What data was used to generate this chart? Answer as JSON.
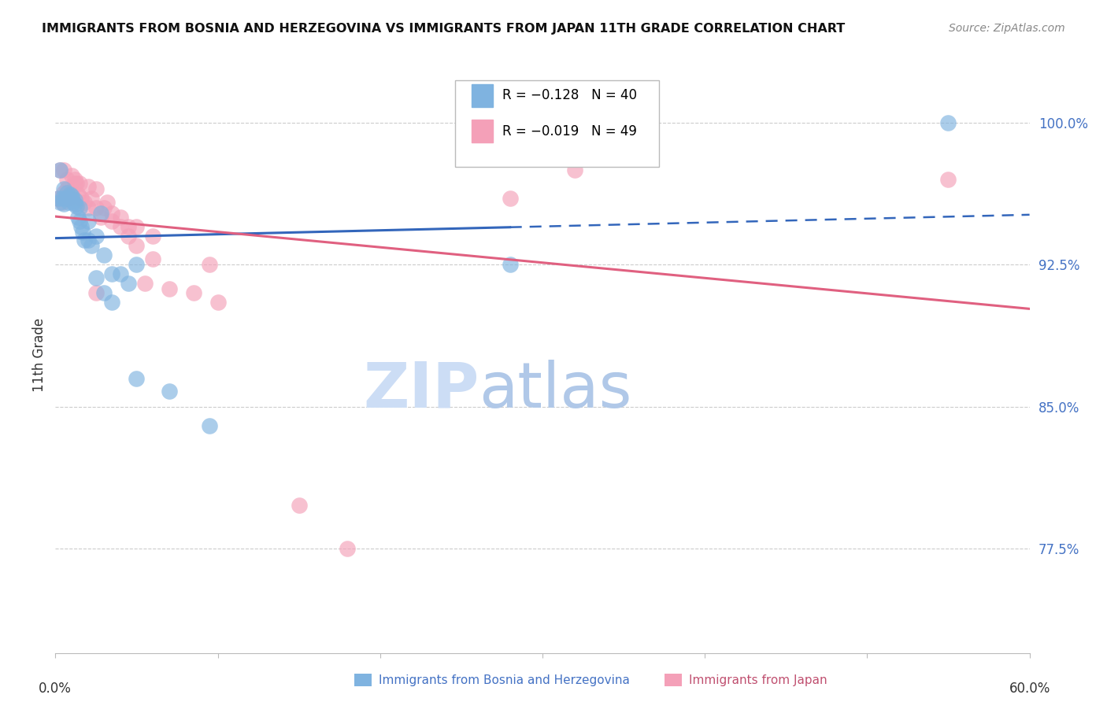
{
  "title": "IMMIGRANTS FROM BOSNIA AND HERZEGOVINA VS IMMIGRANTS FROM JAPAN 11TH GRADE CORRELATION CHART",
  "source": "Source: ZipAtlas.com",
  "ylabel": "11th Grade",
  "ytick_labels": [
    "77.5%",
    "85.0%",
    "92.5%",
    "100.0%"
  ],
  "ytick_values": [
    77.5,
    85.0,
    92.5,
    100.0
  ],
  "xlim": [
    0.0,
    60.0
  ],
  "ylim": [
    72.0,
    103.5
  ],
  "legend_blue_r": "-0.128",
  "legend_blue_n": "40",
  "legend_pink_r": "-0.019",
  "legend_pink_n": "49",
  "blue_scatter_x": [
    0.2,
    0.3,
    0.4,
    0.5,
    0.6,
    0.8,
    0.9,
    1.0,
    1.1,
    1.2,
    1.3,
    1.4,
    1.5,
    1.6,
    1.7,
    1.8,
    2.0,
    2.2,
    2.5,
    2.8,
    3.0,
    3.5,
    4.0,
    4.5,
    5.0,
    0.3,
    0.5,
    0.7,
    1.0,
    1.2,
    1.5,
    2.0,
    2.5,
    3.0,
    3.5,
    28.0,
    5.0,
    7.0,
    9.5,
    55.0
  ],
  "blue_scatter_y": [
    96.0,
    95.8,
    96.0,
    95.7,
    96.0,
    95.8,
    96.2,
    96.0,
    95.8,
    95.7,
    95.6,
    95.0,
    94.8,
    94.5,
    94.2,
    93.8,
    93.8,
    93.5,
    94.0,
    95.2,
    93.0,
    92.0,
    92.0,
    91.5,
    92.5,
    97.5,
    96.5,
    96.3,
    96.1,
    95.9,
    95.5,
    94.8,
    91.8,
    91.0,
    90.5,
    92.5,
    86.5,
    85.8,
    84.0,
    100.0
  ],
  "pink_scatter_x": [
    0.2,
    0.4,
    0.5,
    0.6,
    0.7,
    0.8,
    0.9,
    1.0,
    1.1,
    1.2,
    1.3,
    1.4,
    1.6,
    1.8,
    2.0,
    2.2,
    2.5,
    2.8,
    3.2,
    3.5,
    4.0,
    4.5,
    5.0,
    6.0,
    0.3,
    0.5,
    0.7,
    1.0,
    1.2,
    1.5,
    2.0,
    2.5,
    3.0,
    3.5,
    4.0,
    4.5,
    5.0,
    6.0,
    9.5,
    28.0,
    32.0,
    5.5,
    2.5,
    55.0,
    7.0,
    8.5,
    10.0,
    15.0,
    18.0
  ],
  "pink_scatter_y": [
    96.0,
    95.8,
    96.3,
    96.0,
    96.5,
    96.0,
    96.3,
    96.2,
    96.0,
    97.0,
    96.8,
    96.2,
    96.0,
    95.8,
    95.5,
    96.0,
    95.5,
    95.0,
    95.8,
    95.2,
    95.0,
    94.5,
    94.5,
    94.0,
    97.5,
    97.5,
    97.0,
    97.2,
    96.8,
    96.8,
    96.6,
    96.5,
    95.5,
    94.8,
    94.5,
    94.0,
    93.5,
    92.8,
    92.5,
    96.0,
    97.5,
    91.5,
    91.0,
    97.0,
    91.2,
    91.0,
    90.5,
    79.8,
    77.5
  ],
  "blue_color": "#7fb3e0",
  "pink_color": "#f4a0b8",
  "blue_line_color": "#3366bb",
  "pink_line_color": "#e06080",
  "background_color": "#ffffff",
  "grid_color": "#cccccc",
  "watermark_zip": "ZIP",
  "watermark_atlas": "atlas",
  "watermark_color_zip": "#ccddf0",
  "watermark_color_atlas": "#b8cfe8"
}
